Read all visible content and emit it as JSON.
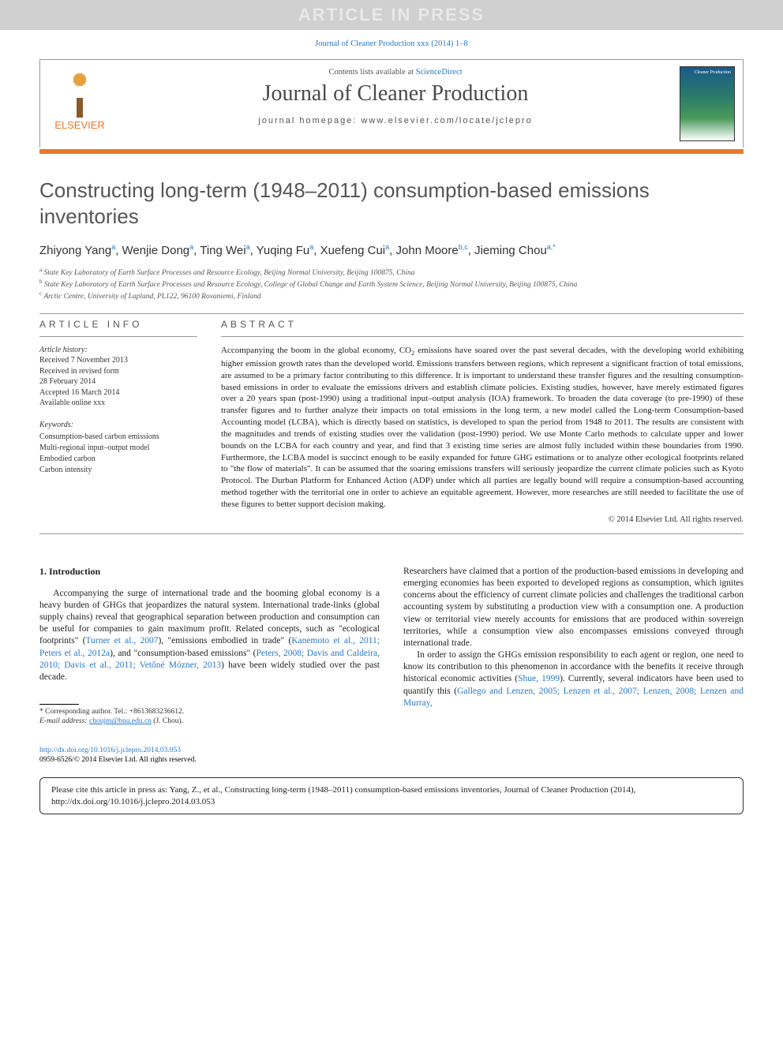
{
  "banner": {
    "text": "ARTICLE IN PRESS"
  },
  "top_citation": "Journal of Cleaner Production xxx (2014) 1–8",
  "header": {
    "contents_prefix": "Contents lists available at ",
    "contents_link": "ScienceDirect",
    "journal_name": "Journal of Cleaner Production",
    "homepage_label": "journal homepage: www.elsevier.com/locate/jclepro",
    "elsevier_label": "ELSEVIER"
  },
  "title": "Constructing long-term (1948–2011) consumption-based emissions inventories",
  "authors_html": "Zhiyong Yang<sup>a</sup>, Wenjie Dong<sup>a</sup>, Ting Wei<sup>a</sup>, Yuqing Fu<sup>a</sup>, Xuefeng Cui<sup>a</sup>, John Moore<sup>b,c</sup>, Jieming Chou<sup>a,*</sup>",
  "affiliations": {
    "a": "State Key Laboratory of Earth Surface Processes and Resource Ecology, Beijing Normal University, Beijing 100875, China",
    "b": "State Key Laboratory of Earth Surface Processes and Resource Ecology, College of Global Change and Earth System Science, Beijing Normal University, Beijing 100875, China",
    "c": "Arctic Centre, University of Lapland, PL122, 96100 Rovaniemi, Finland"
  },
  "article_info": {
    "heading": "ARTICLE INFO",
    "history_label": "Article history:",
    "history": [
      "Received 7 November 2013",
      "Received in revised form",
      "28 February 2014",
      "Accepted 16 March 2014",
      "Available online xxx"
    ],
    "keywords_label": "Keywords:",
    "keywords": [
      "Consumption-based carbon emissions",
      "Multi-regional input–output model",
      "Embodied carbon",
      "Carbon intensity"
    ]
  },
  "abstract": {
    "heading": "ABSTRACT",
    "text": "Accompanying the boom in the global economy, CO2 emissions have soared over the past several decades, with the developing world exhibiting higher emission growth rates than the developed world. Emissions transfers between regions, which represent a significant fraction of total emissions, are assumed to be a primary factor contributing to this difference. It is important to understand these transfer figures and the resulting consumption-based emissions in order to evaluate the emissions drivers and establish climate policies. Existing studies, however, have merely estimated figures over a 20 years span (post-1990) using a traditional input–output analysis (IOA) framework. To broaden the data coverage (to pre-1990) of these transfer figures and to further analyze their impacts on total emissions in the long term, a new model called the Long-term Consumption-based Accounting model (LCBA), which is directly based on statistics, is developed to span the period from 1948 to 2011. The results are consistent with the magnitudes and trends of existing studies over the validation (post-1990) period. We use Monte Carlo methods to calculate upper and lower bounds on the LCBA for each country and year, and find that 3 existing time series are almost fully included within these boundaries from 1990. Furthermore, the LCBA model is succinct enough to be easily expanded for future GHG estimations or to analyze other ecological footprints related to \"the flow of materials\". It can be assumed that the soaring emissions transfers will seriously jeopardize the current climate policies such as Kyoto Protocol. The Durban Platform for Enhanced Action (ADP) under which all parties are legally bound will require a consumption-based accounting method together with the territorial one in order to achieve an equitable agreement. However, more researches are still needed to facilitate the use of these figures to better support decision making.",
    "copyright": "© 2014 Elsevier Ltd. All rights reserved."
  },
  "body": {
    "section_heading": "1. Introduction",
    "col1_p1_pre": "Accompanying the surge of international trade and the booming global economy is a heavy burden of GHGs that jeopardizes the natural system. International trade-links (global supply chains) reveal that geographical separation between production and consumption can be useful for companies to gain maximum profit. Related concepts, such as \"ecological footprints\" (",
    "ref1": "Turner et al., 2007",
    "col1_p1_mid1": "), \"emissions embodied in trade\" (",
    "ref2": "Kanemoto et al., 2011; Peters et al., 2012a",
    "col1_p1_mid2": "), and \"consumption-based emissions\" (",
    "ref3": "Peters, 2008; Davis and Caldeira, 2010; Davis et al., 2011; Vetőné Mózner, 2013",
    "col1_p1_post": ") have been widely studied over the past decade.",
    "col2_p1": "Researchers have claimed that a portion of the production-based emissions in developing and emerging economies has been exported to developed regions as consumption, which ignites concerns about the efficiency of current climate policies and challenges the traditional carbon accounting system by substituting a production view with a consumption one. A production view or territorial view merely accounts for emissions that are produced within sovereign territories, while a consumption view also encompasses emissions conveyed through international trade.",
    "col2_p2_pre": "In order to assign the GHGs emission responsibility to each agent or region, one need to know its contribution to this phenomenon in accordance with the benefits it receive through historical economic activities (",
    "ref4": "Shue, 1999",
    "col2_p2_mid": "). Currently, several indicators have been used to quantify this (",
    "ref5": "Gallego and Lenzen, 2005; Lenzen et al., 2007; Lenzen, 2008; Lenzen and Murray,",
    "footnote_corr": "* Corresponding author. Tel.: +8613683236612.",
    "footnote_email_label": "E-mail address: ",
    "footnote_email": "choujm@bnu.edu.cn",
    "footnote_email_post": " (J. Chou)."
  },
  "doi": {
    "url": "http://dx.doi.org/10.1016/j.jclepro.2014.03.053",
    "issn_line": "0959-6526/© 2014 Elsevier Ltd. All rights reserved."
  },
  "cite_box": "Please cite this article in press as: Yang, Z., et al., Constructing long-term (1948–2011) consumption-based emissions inventories, Journal of Cleaner Production (2014), http://dx.doi.org/10.1016/j.jclepro.2014.03.053",
  "colors": {
    "accent_orange": "#e8792a",
    "link_blue": "#2878c8",
    "banner_bg": "#d0d0d0",
    "text_gray": "#555555"
  }
}
